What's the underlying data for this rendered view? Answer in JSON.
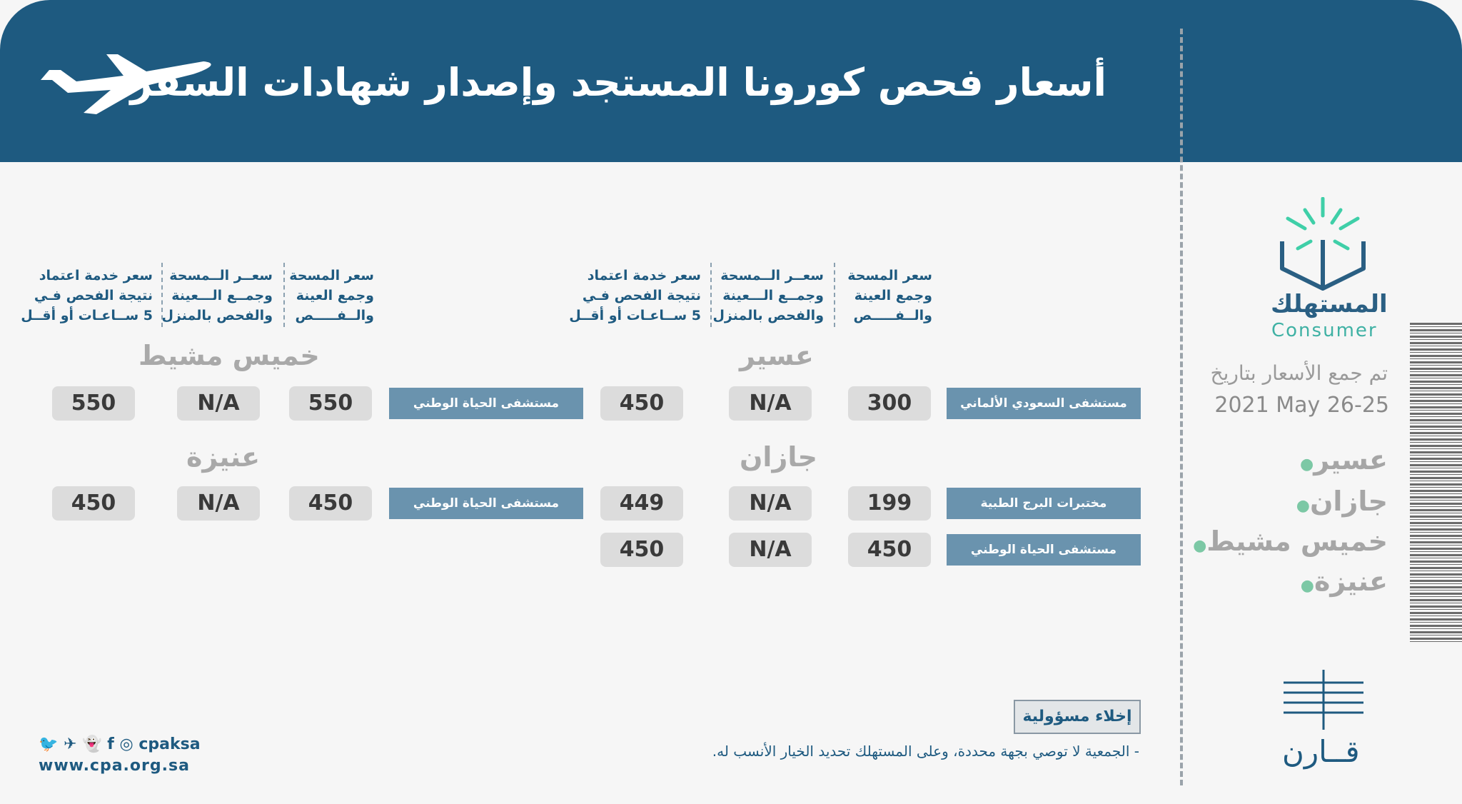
{
  "header": {
    "title": "أسعار فحص كورونا المستجد وإصدار شهادات السفر"
  },
  "column_headers": {
    "swab_lab": [
      "سعر المسحة",
      "وجمع العينة",
      "والــفـــــص"
    ],
    "home_swab": [
      "سعــر الــمسحة",
      "وجمــع الـــعينة",
      "والفحص بالمنزل"
    ],
    "fast_result": [
      "سعر خدمة اعتماد",
      "نتيجة الفحص فـي",
      "5 ســاعـات أو أقــل"
    ]
  },
  "right_group": {
    "region_asir": "عسير",
    "region_jazan": "جازان",
    "rows": [
      {
        "hospital": "مستشفى السعودي الألماني",
        "lab": "300",
        "home": "N/A",
        "fast": "450"
      },
      {
        "hospital": "مختبرات البرج الطبية",
        "lab": "199",
        "home": "N/A",
        "fast": "449"
      },
      {
        "hospital": "مستشفى الحياة الوطني",
        "lab": "450",
        "home": "N/A",
        "fast": "450"
      }
    ]
  },
  "left_group": {
    "region_khamis": "خميس مشيط",
    "region_unaizah": "عنيزة",
    "rows": [
      {
        "hospital": "مستشفى الحياة الوطني",
        "lab": "550",
        "home": "N/A",
        "fast": "550"
      },
      {
        "hospital": "مستشفى الحياة الوطني",
        "lab": "450",
        "home": "N/A",
        "fast": "450"
      }
    ]
  },
  "sidebar": {
    "logo_ar": "المستهلك",
    "logo_en": "Consumer",
    "date_label": "تم جمع الأسعار بتاريخ",
    "date_value": "2021 May 26-25",
    "regions": [
      "عسير",
      "جازان",
      "خميس مشيط",
      "عنيزة"
    ],
    "qarn": "قــارن"
  },
  "footer": {
    "disclaimer_title": "إخلاء مسؤولية",
    "disclaimer_text": "- الجمعية لا توصي بجهة محددة، وعلى المستهلك تحديد الخيار الأنسب له.",
    "social_handle": "cpaksa",
    "website": "www.cpa.org.sa"
  },
  "colors": {
    "header_bg": "#1e5a80",
    "hospital_bg": "#6a93ae",
    "pill_bg": "#dcdcdc",
    "accent_green": "#7cc8a5"
  }
}
